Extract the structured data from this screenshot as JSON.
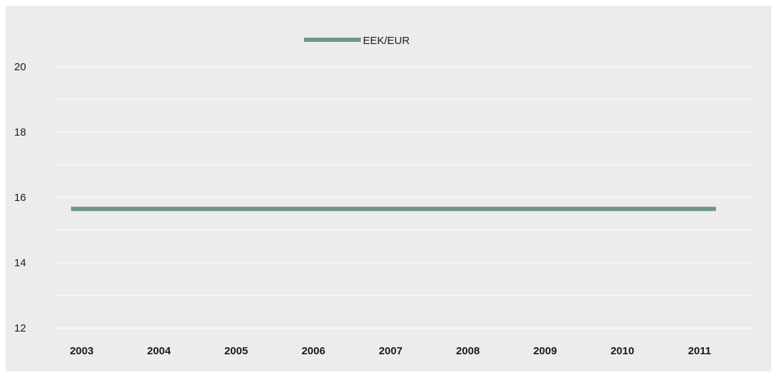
{
  "chart_data": {
    "type": "line",
    "title": "",
    "xlabel": "",
    "ylabel": "",
    "categories": [
      "2003",
      "2004",
      "2005",
      "2006",
      "2007",
      "2008",
      "2009",
      "2010",
      "2011"
    ],
    "series": [
      {
        "name": "EEK/EUR",
        "x": [
          2003,
          2011
        ],
        "values": [
          15.6466,
          15.6466
        ],
        "color": "#6f9886"
      }
    ],
    "y_ticks": [
      "12",
      "14",
      "16",
      "18",
      "20"
    ],
    "ylim": [
      12,
      20
    ],
    "grid": true,
    "grid_color": "#ffffff",
    "legend_position": "top-center",
    "background_color": "#ececec"
  }
}
